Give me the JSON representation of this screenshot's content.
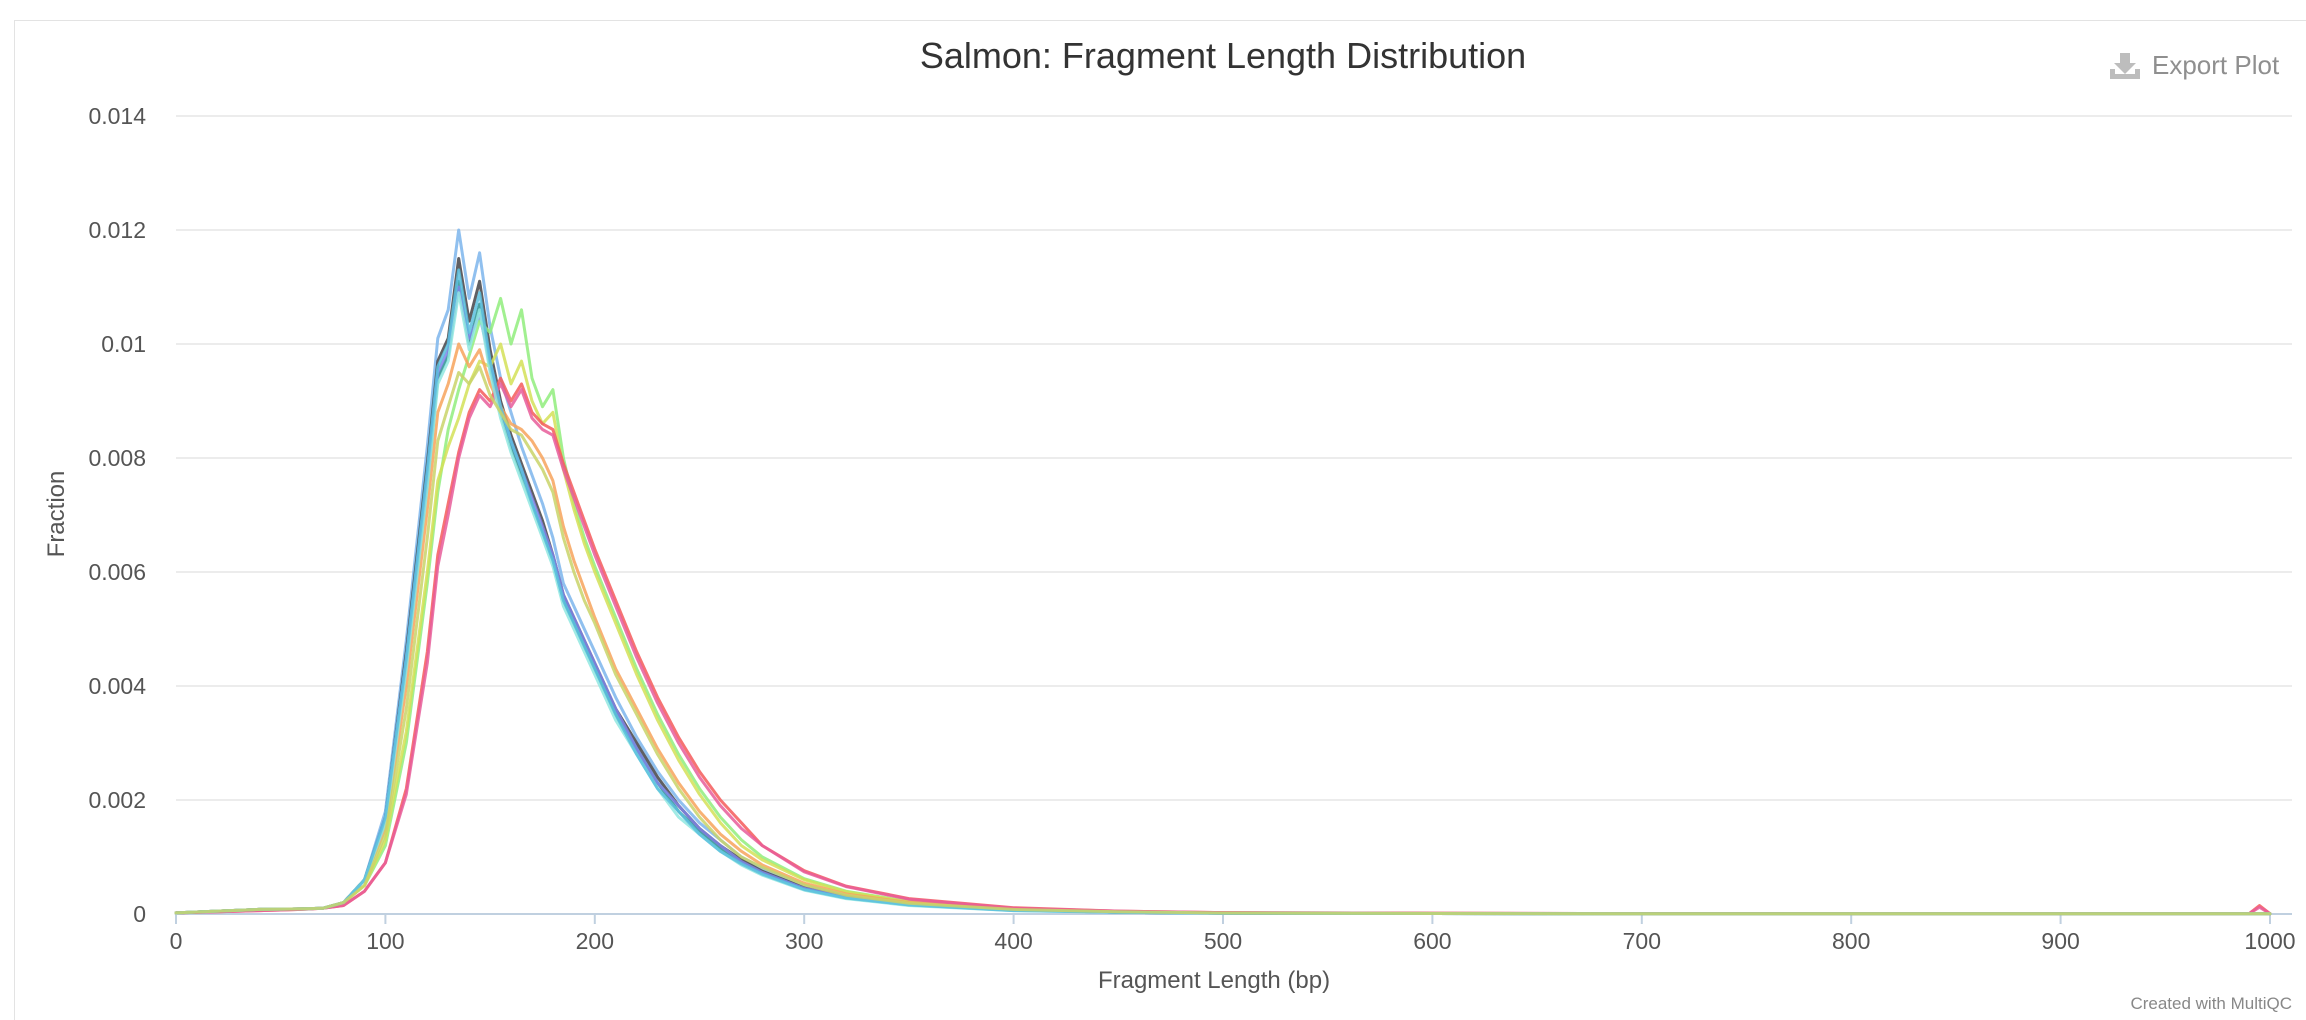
{
  "export_button": {
    "label": "Export Plot",
    "icon": "download-icon"
  },
  "credit": "Created with MultiQC",
  "chart_data": {
    "type": "line",
    "title": "Salmon: Fragment Length Distribution",
    "xlabel": "Fragment Length (bp)",
    "ylabel": "Fraction",
    "xlim": [
      0,
      1000
    ],
    "ylim": [
      0,
      0.014
    ],
    "x_ticks": [
      "0",
      "100",
      "200",
      "300",
      "400",
      "500",
      "600",
      "700",
      "800",
      "900",
      "1000"
    ],
    "y_ticks": [
      "0",
      "0.002",
      "0.004",
      "0.006",
      "0.008",
      "0.01",
      "0.012",
      "0.014"
    ],
    "grid": true,
    "legend": "none",
    "x": [
      0,
      20,
      40,
      60,
      70,
      80,
      90,
      100,
      110,
      120,
      125,
      130,
      135,
      140,
      145,
      150,
      155,
      160,
      165,
      170,
      175,
      180,
      185,
      190,
      195,
      200,
      210,
      220,
      230,
      240,
      250,
      260,
      270,
      280,
      300,
      320,
      350,
      400,
      450,
      500,
      600,
      700,
      800,
      900,
      990,
      995,
      1000
    ],
    "series": [
      {
        "color": "#7cb5ec",
        "values": [
          2e-05,
          5e-05,
          8e-05,
          9e-05,
          0.0001,
          0.0002,
          0.0006,
          0.0018,
          0.0048,
          0.0082,
          0.0101,
          0.0106,
          0.012,
          0.0108,
          0.0116,
          0.0103,
          0.0094,
          0.0088,
          0.0082,
          0.0077,
          0.0072,
          0.0066,
          0.0058,
          0.0054,
          0.005,
          0.0046,
          0.0038,
          0.0031,
          0.0025,
          0.002,
          0.0016,
          0.0013,
          0.001,
          0.0008,
          0.0005,
          0.00032,
          0.00018,
          7e-05,
          3e-05,
          1.5e-05,
          8e-06,
          5e-06,
          4e-06,
          3e-06,
          3e-06,
          4e-06,
          3e-06
        ]
      },
      {
        "color": "#434348",
        "values": [
          2e-05,
          5e-05,
          8e-05,
          9e-05,
          0.0001,
          0.0002,
          0.0006,
          0.0017,
          0.0046,
          0.0079,
          0.0097,
          0.0101,
          0.0115,
          0.0104,
          0.0111,
          0.0099,
          0.009,
          0.0084,
          0.0079,
          0.0074,
          0.0069,
          0.0063,
          0.0056,
          0.0052,
          0.0048,
          0.0044,
          0.0036,
          0.003,
          0.0024,
          0.0019,
          0.0015,
          0.0012,
          0.00095,
          0.00075,
          0.00046,
          0.0003,
          0.00017,
          7e-05,
          3e-05,
          1.5e-05,
          8e-06,
          5e-06,
          4e-06,
          3e-06,
          3e-06,
          4e-06,
          3e-06
        ]
      },
      {
        "color": "#2b908f",
        "values": [
          2e-05,
          5e-05,
          8e-05,
          9e-05,
          0.0001,
          0.0002,
          0.0006,
          0.0016,
          0.0044,
          0.0076,
          0.0094,
          0.0098,
          0.0111,
          0.01,
          0.0107,
          0.0096,
          0.0088,
          0.0082,
          0.0077,
          0.0072,
          0.0067,
          0.0062,
          0.0055,
          0.0051,
          0.0047,
          0.0043,
          0.0035,
          0.0029,
          0.0023,
          0.0018,
          0.00145,
          0.00115,
          0.0009,
          0.00072,
          0.00044,
          0.00029,
          0.00016,
          7e-05,
          3e-05,
          1.5e-05,
          8e-06,
          5e-06,
          4e-06,
          3e-06,
          3e-06,
          4e-06,
          3e-06
        ]
      },
      {
        "color": "#8085e9",
        "values": [
          2e-05,
          5e-05,
          8e-05,
          9e-05,
          0.0001,
          0.0002,
          0.0006,
          0.0017,
          0.0045,
          0.0077,
          0.0095,
          0.0099,
          0.011,
          0.0101,
          0.0105,
          0.0097,
          0.0089,
          0.0083,
          0.0078,
          0.0073,
          0.0068,
          0.0063,
          0.0056,
          0.0052,
          0.0048,
          0.0044,
          0.0036,
          0.0029,
          0.0023,
          0.0019,
          0.0015,
          0.0012,
          0.00092,
          0.00073,
          0.00045,
          0.0003,
          0.00017,
          7e-05,
          3e-05,
          1.5e-05,
          8e-06,
          5e-06,
          4e-06,
          3e-06,
          3e-06,
          4e-06,
          3e-06
        ]
      },
      {
        "color": "#90ed7d",
        "values": [
          2e-05,
          5e-05,
          8e-05,
          9e-05,
          0.0001,
          0.0002,
          0.0005,
          0.0012,
          0.003,
          0.0058,
          0.0074,
          0.0085,
          0.0092,
          0.0098,
          0.0104,
          0.0102,
          0.0108,
          0.01,
          0.0106,
          0.0094,
          0.0089,
          0.0092,
          0.008,
          0.0072,
          0.0066,
          0.0061,
          0.0052,
          0.0043,
          0.0035,
          0.0028,
          0.0022,
          0.0017,
          0.0013,
          0.001,
          0.00062,
          0.0004,
          0.00022,
          9e-05,
          4e-05,
          2e-05,
          1e-05,
          6e-06,
          5e-06,
          4e-06,
          4e-06,
          5e-06,
          4e-06
        ]
      },
      {
        "color": "#d4e157",
        "values": [
          2e-05,
          5e-05,
          8e-05,
          9e-05,
          0.0001,
          0.0002,
          0.0005,
          0.0013,
          0.0032,
          0.006,
          0.0076,
          0.0082,
          0.0087,
          0.0093,
          0.0097,
          0.0096,
          0.01,
          0.0093,
          0.0097,
          0.009,
          0.0086,
          0.0088,
          0.0078,
          0.0071,
          0.0065,
          0.006,
          0.0051,
          0.0042,
          0.0034,
          0.0027,
          0.0021,
          0.0016,
          0.0012,
          0.00095,
          0.0006,
          0.00039,
          0.00021,
          9e-05,
          4e-05,
          2e-05,
          1e-05,
          6e-06,
          5e-06,
          4e-06,
          4e-06,
          5e-06,
          4e-06
        ]
      },
      {
        "color": "#f7a35c",
        "values": [
          2e-05,
          5e-05,
          8e-05,
          9e-05,
          0.0001,
          0.0002,
          0.0006,
          0.0015,
          0.004,
          0.0071,
          0.0088,
          0.0093,
          0.01,
          0.0096,
          0.0099,
          0.0093,
          0.0089,
          0.0086,
          0.0085,
          0.0083,
          0.008,
          0.0076,
          0.0068,
          0.0062,
          0.0057,
          0.0052,
          0.0043,
          0.0036,
          0.0029,
          0.0023,
          0.0018,
          0.0014,
          0.0011,
          0.00086,
          0.00054,
          0.00035,
          0.0002,
          8e-05,
          4e-05,
          2e-05,
          1e-05,
          6e-06,
          5e-06,
          4e-06,
          4e-06,
          5e-06,
          4e-06
        ]
      },
      {
        "color": "#f45b5b",
        "values": [
          2e-05,
          4e-05,
          6e-05,
          8e-05,
          0.0001,
          0.00015,
          0.0004,
          0.0009,
          0.0022,
          0.0046,
          0.0063,
          0.0072,
          0.0081,
          0.0088,
          0.0092,
          0.009,
          0.0094,
          0.009,
          0.0093,
          0.0088,
          0.0086,
          0.0085,
          0.0079,
          0.0074,
          0.0069,
          0.0064,
          0.0055,
          0.0046,
          0.0038,
          0.0031,
          0.0025,
          0.002,
          0.0016,
          0.0012,
          0.00076,
          0.00049,
          0.00027,
          0.00011,
          5e-05,
          2.5e-05,
          1.2e-05,
          7e-06,
          6e-06,
          5e-06,
          6e-06,
          0.00015,
          5e-06
        ]
      },
      {
        "color": "#e85d9a",
        "values": [
          2e-05,
          4e-05,
          6e-05,
          8e-05,
          0.0001,
          0.00015,
          0.0004,
          0.0009,
          0.0021,
          0.0044,
          0.0061,
          0.007,
          0.008,
          0.0087,
          0.0091,
          0.0089,
          0.0093,
          0.0089,
          0.0092,
          0.0087,
          0.0085,
          0.0084,
          0.0078,
          0.0073,
          0.0068,
          0.0063,
          0.0054,
          0.0045,
          0.0037,
          0.003,
          0.0024,
          0.0019,
          0.0015,
          0.0012,
          0.00074,
          0.00048,
          0.00026,
          0.0001,
          5e-05,
          2.5e-05,
          1.2e-05,
          7e-06,
          6e-06,
          5e-06,
          6e-06,
          0.00012,
          5e-06
        ]
      },
      {
        "color": "#91e8e1",
        "values": [
          2e-05,
          5e-05,
          8e-05,
          9e-05,
          0.0001,
          0.0002,
          0.0006,
          0.0016,
          0.0043,
          0.0075,
          0.0093,
          0.0097,
          0.0109,
          0.0099,
          0.0106,
          0.0095,
          0.0087,
          0.0081,
          0.0076,
          0.0071,
          0.0066,
          0.0061,
          0.0054,
          0.005,
          0.0046,
          0.0042,
          0.0034,
          0.0028,
          0.0022,
          0.0017,
          0.0014,
          0.0011,
          0.00086,
          0.00068,
          0.00042,
          0.00027,
          0.00015,
          6e-05,
          3e-05,
          1.4e-05,
          8e-06,
          5e-06,
          4e-06,
          3e-06,
          3e-06,
          4e-06,
          3e-06
        ]
      },
      {
        "color": "#5bc0de",
        "values": [
          2e-05,
          5e-05,
          8e-05,
          9e-05,
          0.0001,
          0.0002,
          0.0006,
          0.0017,
          0.0045,
          0.0078,
          0.0096,
          0.01,
          0.0113,
          0.0102,
          0.0109,
          0.0097,
          0.0089,
          0.0083,
          0.0078,
          0.0072,
          0.0067,
          0.0062,
          0.0055,
          0.0051,
          0.0047,
          0.0043,
          0.0035,
          0.0028,
          0.0022,
          0.0018,
          0.0014,
          0.0011,
          0.00088,
          0.0007,
          0.00043,
          0.00028,
          0.00016,
          6e-05,
          3e-05,
          1.4e-05,
          8e-06,
          5e-06,
          4e-06,
          3e-06,
          3e-06,
          4e-06,
          3e-06
        ]
      },
      {
        "color": "#c9d468",
        "values": [
          2e-05,
          5e-05,
          8e-05,
          9e-05,
          0.0001,
          0.0002,
          0.0005,
          0.0014,
          0.0036,
          0.0066,
          0.0083,
          0.0089,
          0.0095,
          0.0093,
          0.0096,
          0.0091,
          0.0088,
          0.0085,
          0.0084,
          0.0081,
          0.0078,
          0.0074,
          0.0066,
          0.006,
          0.0055,
          0.0051,
          0.0042,
          0.0035,
          0.0028,
          0.0022,
          0.0017,
          0.0013,
          0.001,
          0.00082,
          0.00051,
          0.00033,
          0.00019,
          8e-05,
          4e-05,
          1.8e-05,
          9e-06,
          6e-06,
          5e-06,
          4e-06,
          4e-06,
          5e-06,
          4e-06
        ]
      }
    ]
  }
}
